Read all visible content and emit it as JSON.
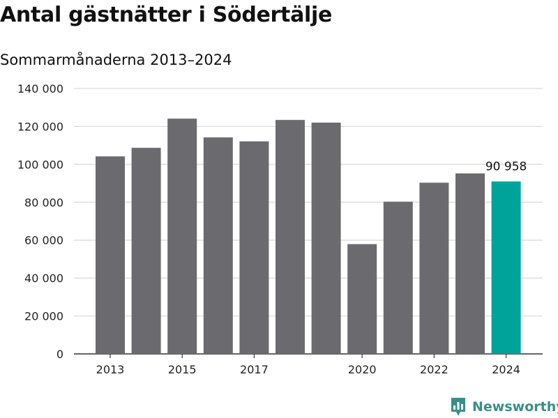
{
  "title": "Antal gästnätter i Södertälje",
  "subtitle": "Sommarmånaderna 2013–2024",
  "brand": {
    "name": "Newsworthy",
    "icon": "newsworthy-logo-icon"
  },
  "colors": {
    "bar": "#6b6a6f",
    "highlight": "#00a39a",
    "grid": "#d9d9d9",
    "brand": "#3a8e8a"
  },
  "chart_data": {
    "type": "bar",
    "categories": [
      "2013",
      "2014",
      "2015",
      "2016",
      "2017",
      "2018",
      "2019",
      "2020",
      "2021",
      "2022",
      "2023",
      "2024"
    ],
    "values": [
      104200,
      108700,
      124100,
      114200,
      112100,
      123400,
      122000,
      57900,
      80300,
      90300,
      95200,
      90958
    ],
    "x_tick_labels": [
      "2013",
      "",
      "2015",
      "",
      "2017",
      "",
      "",
      "2020",
      "",
      "2022",
      "",
      "2024"
    ],
    "y_tick_labels": [
      "0",
      "20 000",
      "40 000",
      "60 000",
      "80 000",
      "100 000",
      "120 000",
      "140 000"
    ],
    "y_ticks": [
      0,
      20000,
      40000,
      60000,
      80000,
      100000,
      120000,
      140000
    ],
    "ylim": [
      0,
      140000
    ],
    "highlight_index": 11,
    "highlight_label": "90 958",
    "grid": true,
    "xlabel": "",
    "ylabel": ""
  }
}
